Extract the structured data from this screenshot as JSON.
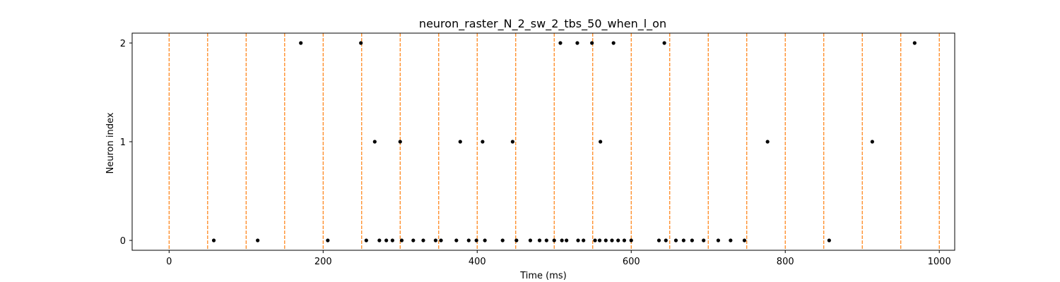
{
  "chart_data": {
    "type": "scatter",
    "title": "neuron_raster_N_2_sw_2_tbs_50_when_l_on",
    "xlabel": "Time (ms)",
    "ylabel": "Neuron index",
    "xlim": [
      -48,
      1020
    ],
    "ylim": [
      -0.1,
      2.1
    ],
    "xticks": [
      0,
      200,
      400,
      600,
      800,
      1000
    ],
    "yticks": [
      0,
      1,
      2
    ],
    "grid": false,
    "colors": {
      "spike": "#000000",
      "marker_line": "#ff7f0e",
      "frame": "#000000"
    },
    "vertical_markers": {
      "style": "dashed",
      "x": [
        0,
        50,
        100,
        150,
        200,
        250,
        300,
        350,
        400,
        450,
        500,
        550,
        600,
        650,
        700,
        750,
        800,
        850,
        900,
        950,
        1000
      ]
    },
    "series": [
      {
        "neuron": 0,
        "x": [
          58,
          115,
          206,
          256,
          273,
          282,
          290,
          302,
          317,
          330,
          346,
          353,
          373,
          389,
          399,
          410,
          433,
          451,
          469,
          481,
          490,
          500,
          510,
          516,
          531,
          538,
          553,
          559,
          567,
          575,
          583,
          591,
          600,
          636,
          645,
          658,
          668,
          679,
          694,
          713,
          729,
          747
        ]
      },
      {
        "neuron": 0,
        "x": [
          857
        ]
      },
      {
        "neuron": 1,
        "x": [
          267,
          300,
          378,
          407,
          446,
          560,
          777,
          913
        ]
      },
      {
        "neuron": 2,
        "x": [
          171,
          249,
          508,
          530,
          549,
          577,
          643,
          968
        ]
      }
    ]
  }
}
